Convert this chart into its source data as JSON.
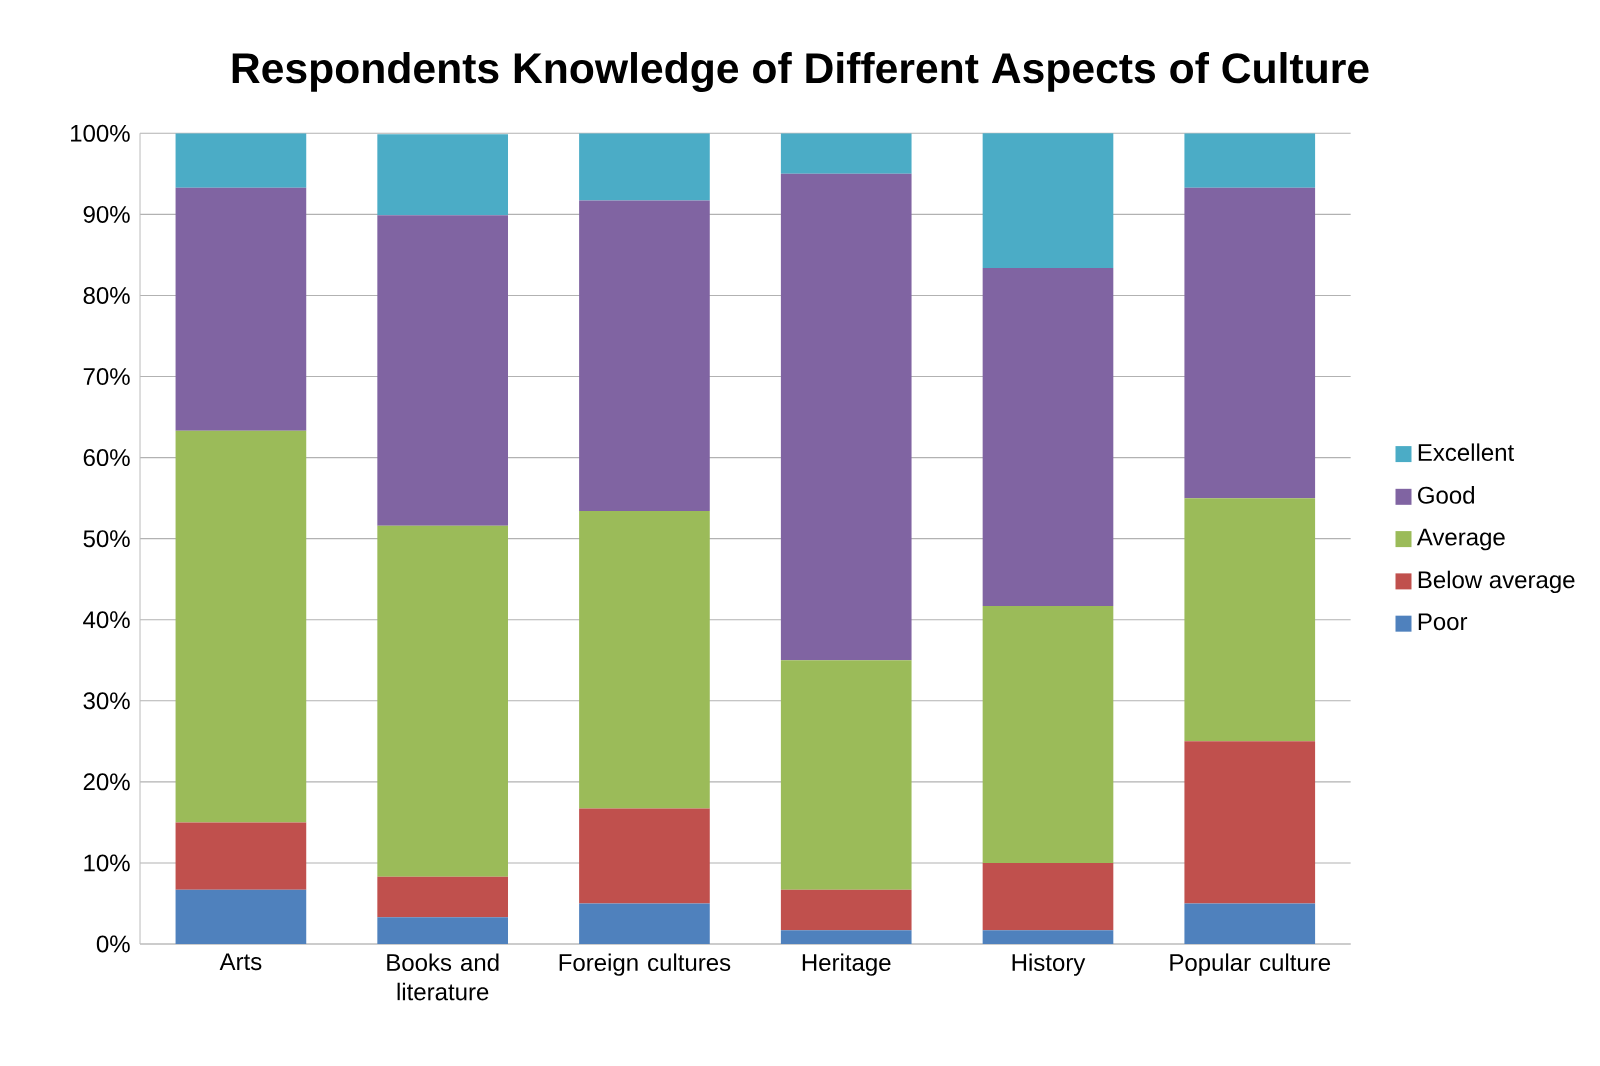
{
  "chart_data": {
    "type": "bar",
    "stacked": true,
    "title": "Respondents Knowledge of Different Aspects of Culture",
    "categories": [
      "Arts",
      "Books and literature",
      "Foreign cultures",
      "Heritage",
      "History",
      "Popular culture"
    ],
    "series": [
      {
        "name": "Poor",
        "color": "#4f81bd",
        "values": [
          6.7,
          3.3,
          5,
          1.7,
          1.7,
          5
        ]
      },
      {
        "name": "Below average",
        "color": "#c0504d",
        "values": [
          8.3,
          5,
          11.7,
          5,
          8.3,
          20
        ]
      },
      {
        "name": "Average",
        "color": "#9bbb59",
        "values": [
          48.3,
          43.3,
          36.7,
          28.3,
          31.7,
          30
        ]
      },
      {
        "name": "Good",
        "color": "#8064a2",
        "values": [
          30,
          38.3,
          38.3,
          60,
          41.7,
          38.3
        ]
      },
      {
        "name": "Excellent",
        "color": "#4bacc6",
        "values": [
          6.7,
          10,
          8.3,
          5,
          16.7,
          6.7
        ]
      }
    ],
    "ylim": [
      0,
      100
    ],
    "yticks": [
      {
        "value": 0,
        "label": "0%"
      },
      {
        "value": 10,
        "label": "10%"
      },
      {
        "value": 20,
        "label": "20%"
      },
      {
        "value": 30,
        "label": "30%"
      },
      {
        "value": 40,
        "label": "40%"
      },
      {
        "value": 50,
        "label": "50%"
      },
      {
        "value": 60,
        "label": "60%"
      },
      {
        "value": 70,
        "label": "70%"
      },
      {
        "value": 80,
        "label": "80%"
      },
      {
        "value": 90,
        "label": "90%"
      },
      {
        "value": 100,
        "label": "100%"
      }
    ],
    "grid": "y",
    "legend": "right"
  }
}
